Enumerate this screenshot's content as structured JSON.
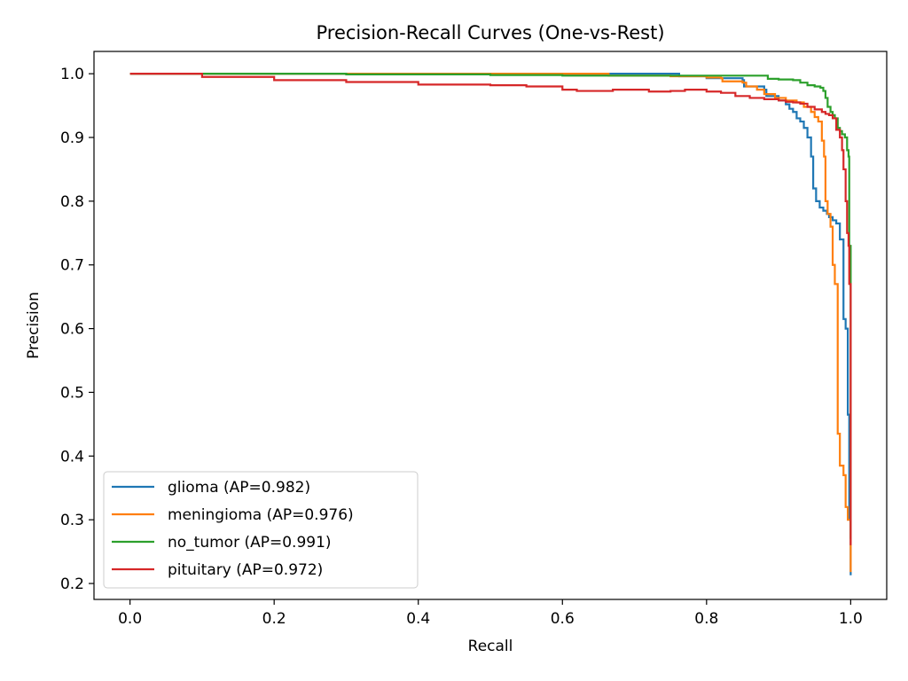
{
  "chart_data": {
    "type": "line",
    "title": "Precision-Recall Curves (One-vs-Rest)",
    "xlabel": "Recall",
    "ylabel": "Precision",
    "xlim": [
      -0.05,
      1.05
    ],
    "ylim": [
      0.175,
      1.035
    ],
    "xticks": [
      0.0,
      0.2,
      0.4,
      0.6,
      0.8,
      1.0
    ],
    "xtick_labels": [
      "0.0",
      "0.2",
      "0.4",
      "0.6",
      "0.8",
      "1.0"
    ],
    "yticks": [
      0.2,
      0.3,
      0.4,
      0.5,
      0.6,
      0.7,
      0.8,
      0.9,
      1.0
    ],
    "ytick_labels": [
      "0.2",
      "0.3",
      "0.4",
      "0.5",
      "0.6",
      "0.7",
      "0.8",
      "0.9",
      "1.0"
    ],
    "grid": false,
    "legend_position": "lower-left",
    "series": [
      {
        "name": "glioma (AP=0.982)",
        "color": "#1f77b4",
        "points": [
          [
            0,
            1.0
          ],
          [
            0.3,
            1.0
          ],
          [
            0.5,
            1.0
          ],
          [
            0.6,
            0.999
          ],
          [
            0.66,
            0.999
          ],
          [
            0.662,
            1.0
          ],
          [
            0.7,
            1.0
          ],
          [
            0.76,
            1.0
          ],
          [
            0.762,
            0.996
          ],
          [
            0.8,
            0.993
          ],
          [
            0.85,
            0.99
          ],
          [
            0.852,
            0.98
          ],
          [
            0.88,
            0.975
          ],
          [
            0.883,
            0.965
          ],
          [
            0.9,
            0.958
          ],
          [
            0.91,
            0.952
          ],
          [
            0.915,
            0.945
          ],
          [
            0.92,
            0.94
          ],
          [
            0.925,
            0.93
          ],
          [
            0.93,
            0.925
          ],
          [
            0.935,
            0.915
          ],
          [
            0.94,
            0.9
          ],
          [
            0.945,
            0.87
          ],
          [
            0.948,
            0.82
          ],
          [
            0.952,
            0.8
          ],
          [
            0.957,
            0.79
          ],
          [
            0.962,
            0.785
          ],
          [
            0.967,
            0.78
          ],
          [
            0.97,
            0.775
          ],
          [
            0.975,
            0.77
          ],
          [
            0.98,
            0.765
          ],
          [
            0.985,
            0.74
          ],
          [
            0.99,
            0.615
          ],
          [
            0.993,
            0.6
          ],
          [
            0.996,
            0.465
          ],
          [
            0.998,
            0.3
          ],
          [
            1.0,
            0.213
          ]
        ]
      },
      {
        "name": "meningioma (AP=0.976)",
        "color": "#ff7f0e",
        "points": [
          [
            0,
            1.0
          ],
          [
            0.3,
            1.0
          ],
          [
            0.5,
            1.0
          ],
          [
            0.6,
            1.0
          ],
          [
            0.662,
            1.0
          ],
          [
            0.664,
            0.997
          ],
          [
            0.75,
            0.996
          ],
          [
            0.8,
            0.994
          ],
          [
            0.82,
            0.993
          ],
          [
            0.822,
            0.988
          ],
          [
            0.85,
            0.986
          ],
          [
            0.855,
            0.98
          ],
          [
            0.87,
            0.975
          ],
          [
            0.88,
            0.968
          ],
          [
            0.895,
            0.962
          ],
          [
            0.91,
            0.958
          ],
          [
            0.925,
            0.955
          ],
          [
            0.935,
            0.948
          ],
          [
            0.945,
            0.94
          ],
          [
            0.95,
            0.932
          ],
          [
            0.955,
            0.925
          ],
          [
            0.96,
            0.895
          ],
          [
            0.963,
            0.87
          ],
          [
            0.965,
            0.8
          ],
          [
            0.968,
            0.78
          ],
          [
            0.972,
            0.76
          ],
          [
            0.975,
            0.7
          ],
          [
            0.978,
            0.67
          ],
          [
            0.982,
            0.435
          ],
          [
            0.985,
            0.385
          ],
          [
            0.99,
            0.37
          ],
          [
            0.993,
            0.32
          ],
          [
            0.996,
            0.3
          ],
          [
            1.0,
            0.218
          ]
        ]
      },
      {
        "name": "no_tumor (AP=0.991)",
        "color": "#2ca02c",
        "points": [
          [
            0,
            1.0
          ],
          [
            0.3,
            0.999
          ],
          [
            0.5,
            0.998
          ],
          [
            0.6,
            0.997
          ],
          [
            0.7,
            0.997
          ],
          [
            0.8,
            0.997
          ],
          [
            0.86,
            0.997
          ],
          [
            0.88,
            0.997
          ],
          [
            0.885,
            0.992
          ],
          [
            0.9,
            0.991
          ],
          [
            0.92,
            0.99
          ],
          [
            0.93,
            0.986
          ],
          [
            0.94,
            0.982
          ],
          [
            0.95,
            0.98
          ],
          [
            0.958,
            0.978
          ],
          [
            0.962,
            0.973
          ],
          [
            0.965,
            0.962
          ],
          [
            0.968,
            0.948
          ],
          [
            0.972,
            0.94
          ],
          [
            0.975,
            0.935
          ],
          [
            0.978,
            0.93
          ],
          [
            0.982,
            0.915
          ],
          [
            0.985,
            0.91
          ],
          [
            0.988,
            0.905
          ],
          [
            0.992,
            0.9
          ],
          [
            0.995,
            0.88
          ],
          [
            0.997,
            0.87
          ],
          [
            0.998,
            0.73
          ],
          [
            1.0,
            0.27
          ]
        ]
      },
      {
        "name": "pituitary (AP=0.972)",
        "color": "#d62728",
        "points": [
          [
            0,
            1.0
          ],
          [
            0.1,
            0.995
          ],
          [
            0.2,
            0.99
          ],
          [
            0.3,
            0.987
          ],
          [
            0.4,
            0.983
          ],
          [
            0.5,
            0.982
          ],
          [
            0.55,
            0.98
          ],
          [
            0.6,
            0.975
          ],
          [
            0.62,
            0.973
          ],
          [
            0.67,
            0.975
          ],
          [
            0.7,
            0.975
          ],
          [
            0.72,
            0.972
          ],
          [
            0.75,
            0.973
          ],
          [
            0.77,
            0.975
          ],
          [
            0.8,
            0.972
          ],
          [
            0.82,
            0.97
          ],
          [
            0.84,
            0.965
          ],
          [
            0.86,
            0.962
          ],
          [
            0.88,
            0.96
          ],
          [
            0.9,
            0.958
          ],
          [
            0.91,
            0.956
          ],
          [
            0.92,
            0.955
          ],
          [
            0.93,
            0.953
          ],
          [
            0.94,
            0.948
          ],
          [
            0.95,
            0.944
          ],
          [
            0.96,
            0.94
          ],
          [
            0.965,
            0.937
          ],
          [
            0.97,
            0.935
          ],
          [
            0.975,
            0.93
          ],
          [
            0.98,
            0.912
          ],
          [
            0.985,
            0.9
          ],
          [
            0.988,
            0.88
          ],
          [
            0.99,
            0.85
          ],
          [
            0.993,
            0.8
          ],
          [
            0.995,
            0.75
          ],
          [
            0.997,
            0.73
          ],
          [
            0.998,
            0.67
          ],
          [
            1.0,
            0.26
          ]
        ]
      }
    ]
  }
}
